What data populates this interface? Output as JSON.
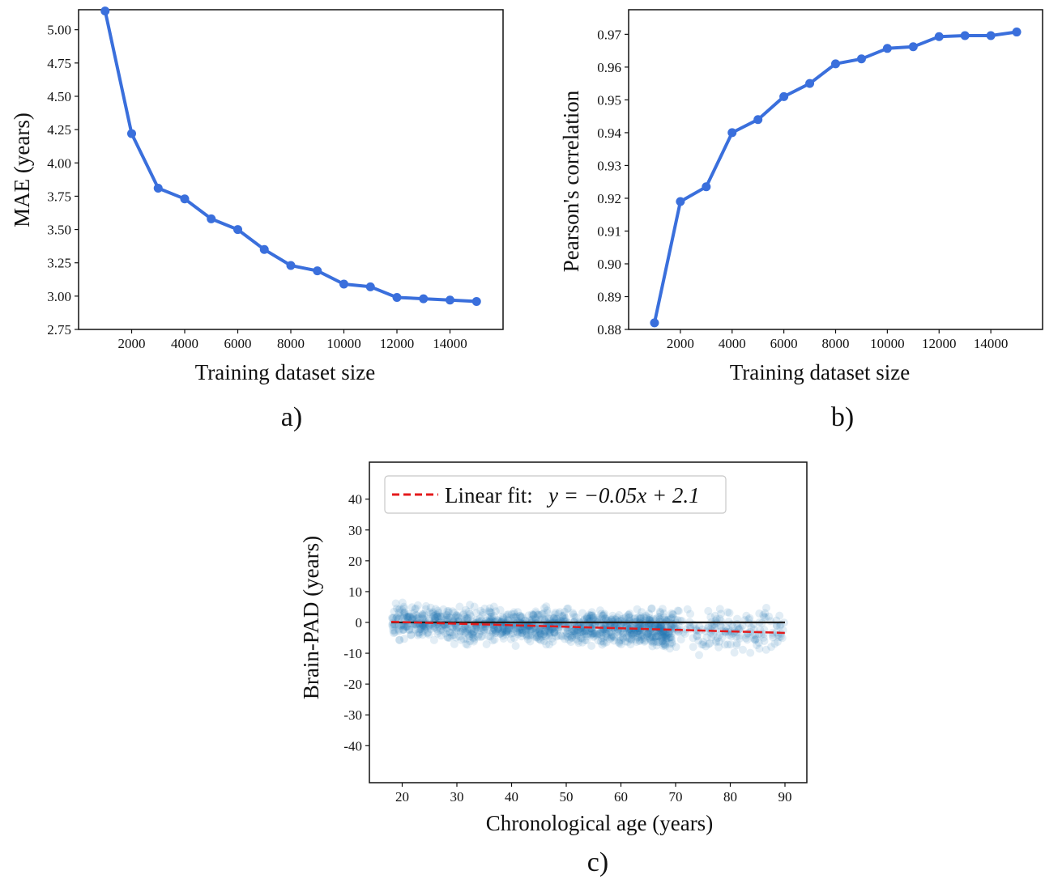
{
  "chart_data": [
    {
      "type": "line",
      "panel_label": "a)",
      "xlabel": "Training dataset size",
      "ylabel": "MAE (years)",
      "xlim": [
        0,
        16000
      ],
      "ylim": [
        2.75,
        5.15
      ],
      "xticks": [
        2000,
        4000,
        6000,
        8000,
        10000,
        12000,
        14000
      ],
      "yticks": [
        2.75,
        3.0,
        3.25,
        3.5,
        3.75,
        4.0,
        4.25,
        4.5,
        4.75,
        5.0
      ],
      "ytick_labels": [
        "2.75",
        "3.00",
        "3.25",
        "3.50",
        "3.75",
        "4.00",
        "4.25",
        "4.50",
        "4.75",
        "5.00"
      ],
      "color": "#3a6fdc",
      "x": [
        1000,
        2000,
        3000,
        4000,
        5000,
        6000,
        7000,
        8000,
        9000,
        10000,
        11000,
        12000,
        13000,
        14000,
        15000
      ],
      "values": [
        5.14,
        4.22,
        3.81,
        3.73,
        3.58,
        3.5,
        3.35,
        3.23,
        3.19,
        3.09,
        3.07,
        2.99,
        2.98,
        2.97,
        2.96
      ]
    },
    {
      "type": "line",
      "panel_label": "b)",
      "xlabel": "Training dataset size",
      "ylabel": "Pearson's correlation",
      "xlim": [
        0,
        16000
      ],
      "ylim": [
        0.88,
        0.9775
      ],
      "xticks": [
        2000,
        4000,
        6000,
        8000,
        10000,
        12000,
        14000
      ],
      "yticks": [
        0.88,
        0.89,
        0.9,
        0.91,
        0.92,
        0.93,
        0.94,
        0.95,
        0.96,
        0.97
      ],
      "ytick_labels": [
        "0.88",
        "0.89",
        "0.90",
        "0.91",
        "0.92",
        "0.93",
        "0.94",
        "0.95",
        "0.96",
        "0.97"
      ],
      "color": "#3a6fdc",
      "x": [
        1000,
        2000,
        3000,
        4000,
        5000,
        6000,
        7000,
        8000,
        9000,
        10000,
        11000,
        12000,
        13000,
        14000,
        15000
      ],
      "values": [
        0.882,
        0.919,
        0.9235,
        0.94,
        0.944,
        0.951,
        0.955,
        0.961,
        0.9625,
        0.9657,
        0.9662,
        0.9693,
        0.9696,
        0.9696,
        0.9707
      ]
    },
    {
      "type": "scatter",
      "panel_label": "c)",
      "xlabel": "Chronological age (years)",
      "ylabel": "Brain-PAD (years)",
      "xlim": [
        14,
        94
      ],
      "ylim": [
        -52,
        52
      ],
      "xticks": [
        20,
        30,
        40,
        50,
        60,
        70,
        80,
        90
      ],
      "yticks": [
        40,
        30,
        20,
        10,
        0,
        -10,
        -20,
        -30,
        -40
      ],
      "ytick_labels": [
        "40",
        "30",
        "20",
        "10",
        "0",
        "-10",
        "-20",
        "-30",
        "-40"
      ],
      "point_color": "#1f77b4",
      "age_range": [
        18,
        90
      ],
      "reference_line": {
        "y": 0,
        "x": [
          18,
          90
        ],
        "color": "#222222"
      },
      "fit": {
        "slope": -0.05,
        "intercept": 2.1,
        "x": [
          18,
          90
        ],
        "color": "#e41a1c"
      },
      "legend": {
        "line_label": "Linear fit:",
        "equation": "y = −0.05x + 2.1",
        "placement": "top-left"
      }
    }
  ]
}
